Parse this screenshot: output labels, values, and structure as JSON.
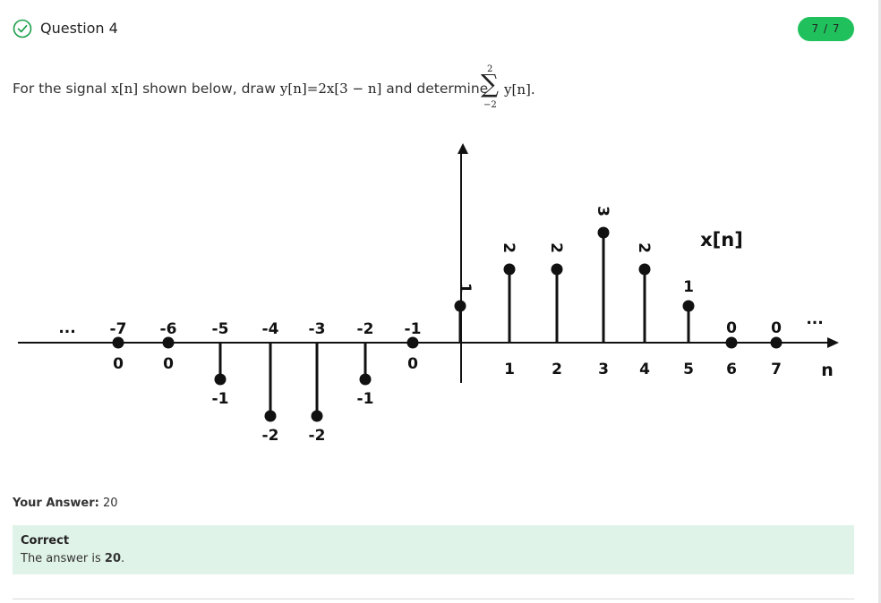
{
  "question": {
    "title": "Question 4",
    "score": "7 / 7",
    "prompt_prefix": "For the signal",
    "prompt_signal": "x[n]",
    "prompt_mid": "shown below, draw",
    "prompt_equation": "y[n]=2x[3 − n]",
    "prompt_and": "and determine",
    "sum_upper": "2",
    "sum_lower": "−2",
    "sum_symbol": "∑",
    "sum_argument": "y[n]."
  },
  "figure": {
    "signal_label": "x[n]",
    "axis_label": "n",
    "left_ellipsis": "...",
    "right_ellipsis": "...",
    "samples": [
      {
        "n": -7,
        "value": 0,
        "tick_label": "-7",
        "value_label": "0"
      },
      {
        "n": -6,
        "value": 0,
        "tick_label": "-6",
        "value_label": "0"
      },
      {
        "n": -5,
        "value": -1,
        "tick_label": "-5",
        "value_label": "-1"
      },
      {
        "n": -4,
        "value": -2,
        "tick_label": "-4",
        "value_label": "-2"
      },
      {
        "n": -3,
        "value": -2,
        "tick_label": "-3",
        "value_label": "-2"
      },
      {
        "n": -2,
        "value": -1,
        "tick_label": "-2",
        "value_label": "-1"
      },
      {
        "n": -1,
        "value": 0,
        "tick_label": "-1",
        "value_label": "0"
      },
      {
        "n": 0,
        "value": 1,
        "tick_label": "",
        "value_label": "1"
      },
      {
        "n": 1,
        "value": 2,
        "tick_label": "1",
        "value_label": "2"
      },
      {
        "n": 2,
        "value": 2,
        "tick_label": "2",
        "value_label": "2"
      },
      {
        "n": 3,
        "value": 3,
        "tick_label": "3",
        "value_label": "3"
      },
      {
        "n": 4,
        "value": 2,
        "tick_label": "4",
        "value_label": "2"
      },
      {
        "n": 5,
        "value": 1,
        "tick_label": "5",
        "value_label": "1"
      },
      {
        "n": 6,
        "value": 0,
        "tick_label": "6",
        "value_label": "0"
      },
      {
        "n": 7,
        "value": 0,
        "tick_label": "7",
        "value_label": "0"
      }
    ]
  },
  "answer": {
    "label": "Your Answer:",
    "value": "20"
  },
  "feedback": {
    "status": "Correct",
    "text_prefix": "The answer is",
    "correct_value": "20",
    "text_suffix": "."
  },
  "colors": {
    "score_pill": "#20c15d",
    "feedback_bg": "#e0f3e8",
    "check_icon": "#1a9e4a"
  }
}
